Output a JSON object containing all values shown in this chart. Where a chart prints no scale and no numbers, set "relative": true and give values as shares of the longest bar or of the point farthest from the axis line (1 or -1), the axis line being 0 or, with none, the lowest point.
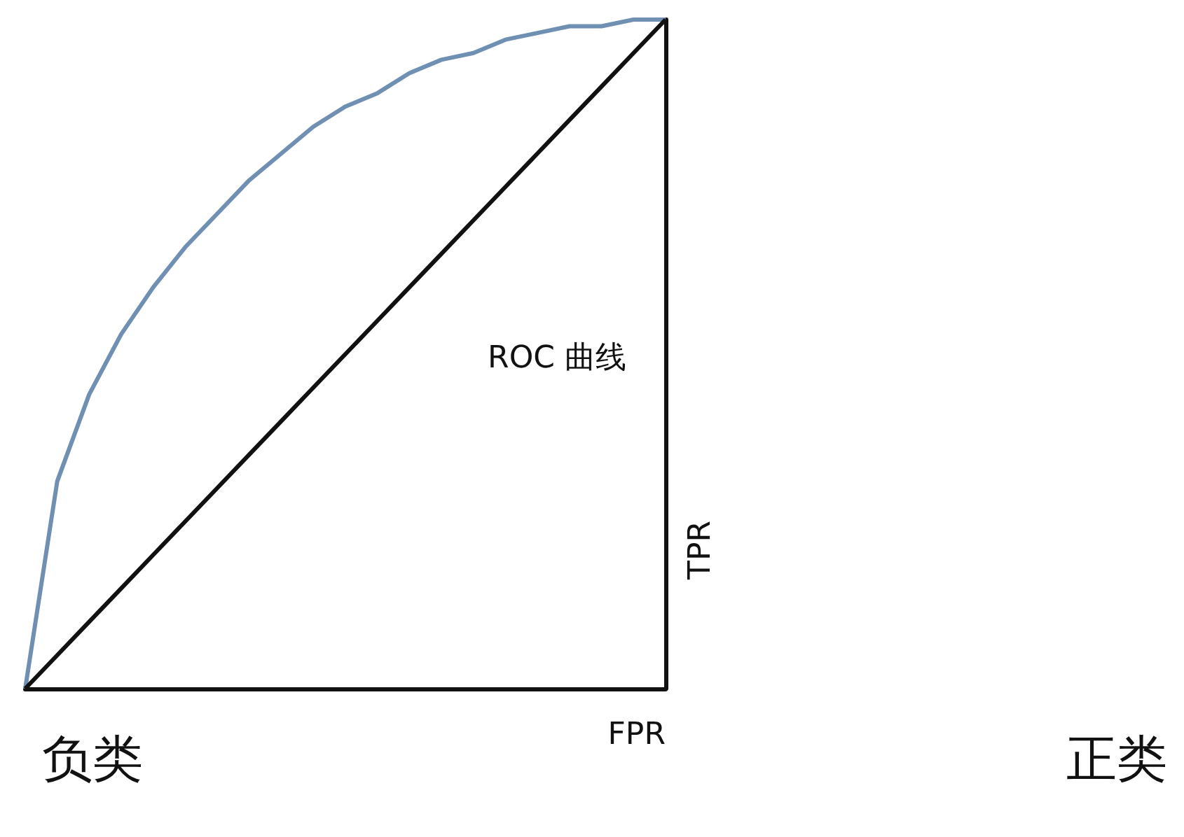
{
  "chart_data": {
    "type": "line",
    "relative": true,
    "xlabel": "FPR",
    "ylabel": "TPR",
    "categories": [
      null,
      null,
      null,
      null,
      null,
      null,
      null,
      null,
      null,
      null,
      null,
      null,
      null,
      null,
      null,
      null,
      null,
      null,
      null,
      null,
      null
    ],
    "series": [
      {
        "color": "#6f8fb3",
        "values": [
          0,
          0.31,
          0.44,
          0.53,
          0.6,
          0.66,
          0.71,
          0.76,
          0.8,
          0.84,
          0.87,
          0.89,
          0.92,
          0.94,
          0.95,
          0.97,
          0.98,
          0.99,
          0.99,
          1,
          1
        ]
      },
      {
        "color": "#111111",
        "values": [
          0,
          0.05,
          0.1,
          0.15,
          0.2,
          0.25,
          0.3,
          0.35,
          0.4,
          0.45,
          0.5,
          0.55,
          0.6,
          0.65,
          0.7,
          0.75,
          0.8,
          0.85,
          0.9,
          0.95,
          1
        ]
      }
    ],
    "annotations": [
      "ROC 曲线",
      "负类",
      "正类"
    ],
    "marker": "none",
    "line_style": "solid",
    "tick_labels": false
  }
}
